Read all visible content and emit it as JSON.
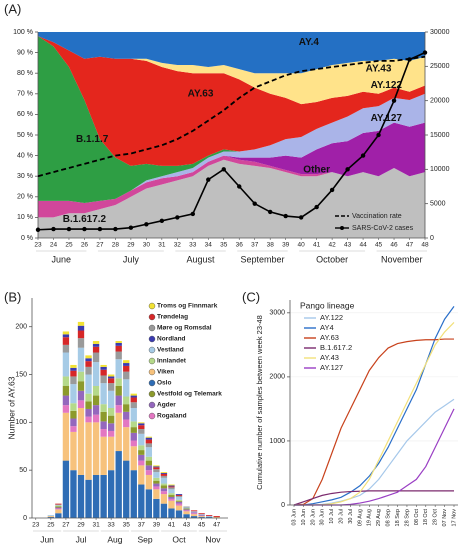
{
  "chart_data": [
    {
      "label": "(A)",
      "type": "area",
      "categories": [
        "23",
        "24",
        "25",
        "26",
        "27",
        "28",
        "29",
        "30",
        "31",
        "32",
        "33",
        "34",
        "35",
        "36",
        "37",
        "38",
        "39",
        "40",
        "41",
        "42",
        "43",
        "44",
        "45",
        "46",
        "47",
        "48"
      ],
      "month_labels": [
        "June",
        "July",
        "August",
        "September",
        "October",
        "November"
      ],
      "series": [
        {
          "name": "Other",
          "color": "#bfbfbf",
          "values": [
            10,
            10,
            12,
            12,
            14,
            16,
            20,
            24,
            26,
            28,
            30,
            35,
            38,
            36,
            35,
            34,
            32,
            30,
            30,
            32,
            30,
            32,
            30,
            34,
            30,
            32
          ]
        },
        {
          "name": "B.1.617.2",
          "color": "#d1479b",
          "values": [
            8,
            8,
            6,
            5,
            4,
            3,
            3,
            3,
            3,
            2,
            2,
            2,
            2,
            2,
            2,
            1,
            1,
            1,
            1,
            0,
            0,
            0,
            0,
            0,
            0,
            0
          ]
        },
        {
          "name": "AY.127",
          "color": "#a020a8",
          "values": [
            0,
            0,
            0,
            0,
            0,
            0,
            0,
            0,
            0,
            0,
            0,
            0,
            0,
            1,
            2,
            4,
            7,
            8,
            12,
            14,
            17,
            19,
            22,
            22,
            24,
            24
          ]
        },
        {
          "name": "AY.122",
          "color": "#aab4e8",
          "values": [
            0,
            0,
            0,
            0,
            0,
            0,
            0,
            1,
            1,
            2,
            2,
            2,
            2,
            3,
            4,
            6,
            8,
            10,
            10,
            10,
            12,
            12,
            12,
            12,
            13,
            14
          ]
        },
        {
          "name": "B.1.1.7",
          "color": "#2e9e44",
          "values": [
            80,
            75,
            65,
            50,
            30,
            20,
            12,
            8,
            5,
            3,
            2,
            1,
            1,
            0,
            0,
            0,
            0,
            0,
            0,
            0,
            0,
            0,
            0,
            0,
            0,
            0
          ]
        },
        {
          "name": "AY.63",
          "color": "#e4261d",
          "values": [
            0,
            2,
            8,
            20,
            40,
            48,
            52,
            50,
            48,
            46,
            44,
            40,
            37,
            35,
            30,
            25,
            20,
            16,
            13,
            12,
            10,
            8,
            6,
            5,
            4,
            4
          ]
        },
        {
          "name": "AY.43",
          "color": "#ffe38a",
          "values": [
            0,
            0,
            0,
            0,
            0,
            0,
            0,
            1,
            2,
            3,
            4,
            3,
            4,
            5,
            7,
            10,
            12,
            15,
            16,
            16,
            16,
            15,
            16,
            14,
            15,
            14
          ]
        },
        {
          "name": "AY.4",
          "color": "#2470c4",
          "values": [
            2,
            5,
            9,
            13,
            12,
            13,
            13,
            13,
            15,
            16,
            16,
            17,
            16,
            18,
            20,
            20,
            20,
            20,
            18,
            16,
            15,
            14,
            14,
            13,
            14,
            12
          ]
        }
      ],
      "line_series": [
        {
          "name": "Vaccination rate",
          "color": "#000000",
          "values": [
            30,
            32,
            34,
            36,
            38,
            40,
            41,
            43,
            45,
            48,
            52,
            57,
            62,
            68,
            73,
            76,
            79,
            81,
            82,
            83,
            84,
            85,
            86,
            86,
            87,
            88
          ]
        },
        {
          "name": "SARS-CoV-2 cases",
          "color": "#000000",
          "axis": "y2",
          "values": [
            1200,
            1300,
            1300,
            1300,
            1300,
            1300,
            1500,
            2000,
            2500,
            3000,
            3500,
            8500,
            10000,
            7500,
            5000,
            3800,
            3200,
            3000,
            4500,
            7000,
            10000,
            12000,
            15000,
            20000,
            26000,
            27000
          ]
        }
      ],
      "ylim": [
        0,
        100
      ],
      "yticks": [
        {
          "value": 0,
          "label": "0 %"
        },
        {
          "value": 10,
          "label": "10 %"
        },
        {
          "value": 20,
          "label": "20 %"
        },
        {
          "value": 30,
          "label": "30 %"
        },
        {
          "value": 40,
          "label": "40 %"
        },
        {
          "value": 50,
          "label": "50 %"
        },
        {
          "value": 60,
          "label": "60 %"
        },
        {
          "value": 70,
          "label": "70 %"
        },
        {
          "value": 80,
          "label": "80 %"
        },
        {
          "value": 90,
          "label": "90 %"
        },
        {
          "value": 100,
          "label": "100 %"
        }
      ],
      "y2lim": [
        0,
        30000
      ],
      "y2ticks": [
        0,
        5000,
        10000,
        15000,
        20000,
        25000,
        30000
      ]
    },
    {
      "label": "(B)",
      "type": "stacked_bar",
      "categories": [
        "23",
        null,
        "25",
        null,
        "27",
        null,
        "29",
        null,
        "31",
        null,
        "33",
        null,
        "35",
        null,
        "37",
        null,
        "39",
        null,
        "41",
        null,
        "43",
        null,
        "45",
        null,
        "47",
        null
      ],
      "month_labels": [
        "Jun",
        "Jul",
        "Aug",
        "Sep",
        "Oct",
        "Nov"
      ],
      "ylabel": "Number of AY.63",
      "series": [
        {
          "name": "Oslo",
          "color": "#2f6db5",
          "values": [
            0,
            0,
            1,
            5,
            60,
            50,
            45,
            40,
            45,
            45,
            50,
            70,
            60,
            50,
            35,
            30,
            20,
            15,
            10,
            8,
            4,
            2,
            1,
            1,
            0,
            0
          ]
        },
        {
          "name": "Viken",
          "color": "#f7c27c",
          "values": [
            0,
            0,
            1,
            4,
            50,
            40,
            70,
            60,
            55,
            40,
            35,
            40,
            35,
            25,
            20,
            15,
            10,
            10,
            8,
            5,
            3,
            2,
            1,
            0,
            1,
            0
          ]
        },
        {
          "name": "Rogaland",
          "color": "#e377c2",
          "values": [
            0,
            0,
            0,
            1,
            8,
            6,
            8,
            6,
            8,
            8,
            6,
            8,
            8,
            6,
            5,
            5,
            3,
            3,
            2,
            2,
            1,
            1,
            0,
            0,
            0,
            0
          ]
        },
        {
          "name": "Agder",
          "color": "#9467bd",
          "values": [
            0,
            0,
            0,
            1,
            10,
            8,
            10,
            8,
            10,
            8,
            8,
            10,
            8,
            8,
            6,
            5,
            3,
            3,
            2,
            2,
            1,
            1,
            1,
            0,
            0,
            0
          ]
        },
        {
          "name": "Vestfold og Telemark",
          "color": "#8c9a2c",
          "values": [
            0,
            0,
            0,
            1,
            10,
            8,
            10,
            8,
            10,
            10,
            8,
            10,
            8,
            6,
            5,
            5,
            3,
            3,
            2,
            1,
            1,
            0,
            0,
            0,
            0,
            0
          ]
        },
        {
          "name": "Innlandet",
          "color": "#b5d98a",
          "values": [
            0,
            0,
            0,
            1,
            10,
            8,
            10,
            8,
            10,
            8,
            8,
            8,
            8,
            6,
            5,
            4,
            3,
            2,
            2,
            1,
            0,
            0,
            0,
            0,
            0,
            0
          ]
        },
        {
          "name": "Vestland",
          "color": "#a6cbe6",
          "values": [
            0,
            0,
            1,
            1,
            25,
            20,
            25,
            20,
            25,
            22,
            18,
            20,
            18,
            14,
            12,
            10,
            6,
            6,
            4,
            3,
            1,
            1,
            1,
            1,
            0,
            0
          ]
        },
        {
          "name": "Møre og Romsdal",
          "color": "#9a9a9a",
          "values": [
            0,
            0,
            0,
            0,
            8,
            8,
            10,
            8,
            10,
            8,
            8,
            8,
            8,
            6,
            5,
            4,
            3,
            2,
            2,
            1,
            1,
            0,
            0,
            0,
            0,
            0
          ]
        },
        {
          "name": "Trøndelag",
          "color": "#d62728",
          "values": [
            0,
            0,
            0,
            1,
            8,
            6,
            8,
            6,
            6,
            6,
            5,
            6,
            6,
            5,
            4,
            4,
            2,
            2,
            1,
            1,
            0,
            1,
            1,
            1,
            1,
            0
          ]
        },
        {
          "name": "Nordland",
          "color": "#3b3bb0",
          "values": [
            0,
            0,
            0,
            0,
            3,
            3,
            5,
            3,
            3,
            3,
            2,
            3,
            3,
            2,
            2,
            2,
            1,
            1,
            1,
            1,
            0,
            0,
            0,
            0,
            0,
            0
          ]
        },
        {
          "name": "Troms og Finnmark",
          "color": "#f2e233",
          "values": [
            0,
            0,
            0,
            0,
            3,
            3,
            4,
            3,
            3,
            2,
            2,
            2,
            3,
            2,
            1,
            1,
            1,
            1,
            1,
            0,
            0,
            0,
            0,
            0,
            0,
            0
          ]
        }
      ],
      "ylim": [
        0,
        230
      ],
      "yticks": [
        0,
        50,
        100,
        150,
        200
      ]
    },
    {
      "label": "(C)",
      "type": "line",
      "categories": [
        "03 Jun",
        "10 Jun",
        "20 Jun",
        "30 Jun",
        "10 Jul",
        "20 Jul",
        "30 Jul",
        "09 Aug",
        "19 Aug",
        "29 Aug",
        "08 Sep",
        "18 Sep",
        "28 Sep",
        "08 Oct",
        "18 Oct",
        "28 Oct",
        "07 Nov",
        "17 Nov"
      ],
      "ylabel": "Cumulative number of samples between week 23-48",
      "legend_title": "Pango lineage",
      "series": [
        {
          "name": "AY.122",
          "color": "#a6c8ea",
          "values": [
            0,
            0,
            0,
            10,
            30,
            60,
            100,
            150,
            250,
            400,
            600,
            800,
            1000,
            1150,
            1300,
            1450,
            1550,
            1650
          ]
        },
        {
          "name": "AY4",
          "color": "#2a6fc9",
          "values": [
            0,
            0,
            20,
            50,
            80,
            120,
            200,
            300,
            450,
            650,
            900,
            1200,
            1500,
            1800,
            2200,
            2600,
            2900,
            3100
          ]
        },
        {
          "name": "AY.63",
          "color": "#c8421c",
          "values": [
            0,
            10,
            100,
            400,
            800,
            1200,
            1500,
            1800,
            2100,
            2300,
            2450,
            2520,
            2550,
            2570,
            2580,
            2580,
            2590,
            2590
          ]
        },
        {
          "name": "B.1.617.2",
          "color": "#7b2a6e",
          "values": [
            0,
            50,
            100,
            150,
            180,
            200,
            210,
            215,
            220,
            220,
            220,
            220,
            220,
            220,
            220,
            220,
            220,
            220
          ]
        },
        {
          "name": "AY.43",
          "color": "#f2e07a",
          "values": [
            0,
            0,
            0,
            5,
            20,
            50,
            100,
            200,
            400,
            700,
            1000,
            1300,
            1600,
            1900,
            2200,
            2500,
            2700,
            2850
          ]
        },
        {
          "name": "AY.127",
          "color": "#9a3fc4",
          "values": [
            0,
            0,
            0,
            0,
            0,
            0,
            10,
            30,
            60,
            100,
            150,
            200,
            300,
            400,
            600,
            900,
            1200,
            1500
          ]
        }
      ],
      "ylim": [
        0,
        3200
      ],
      "yticks": [
        0,
        1000,
        2000,
        3000
      ]
    }
  ]
}
